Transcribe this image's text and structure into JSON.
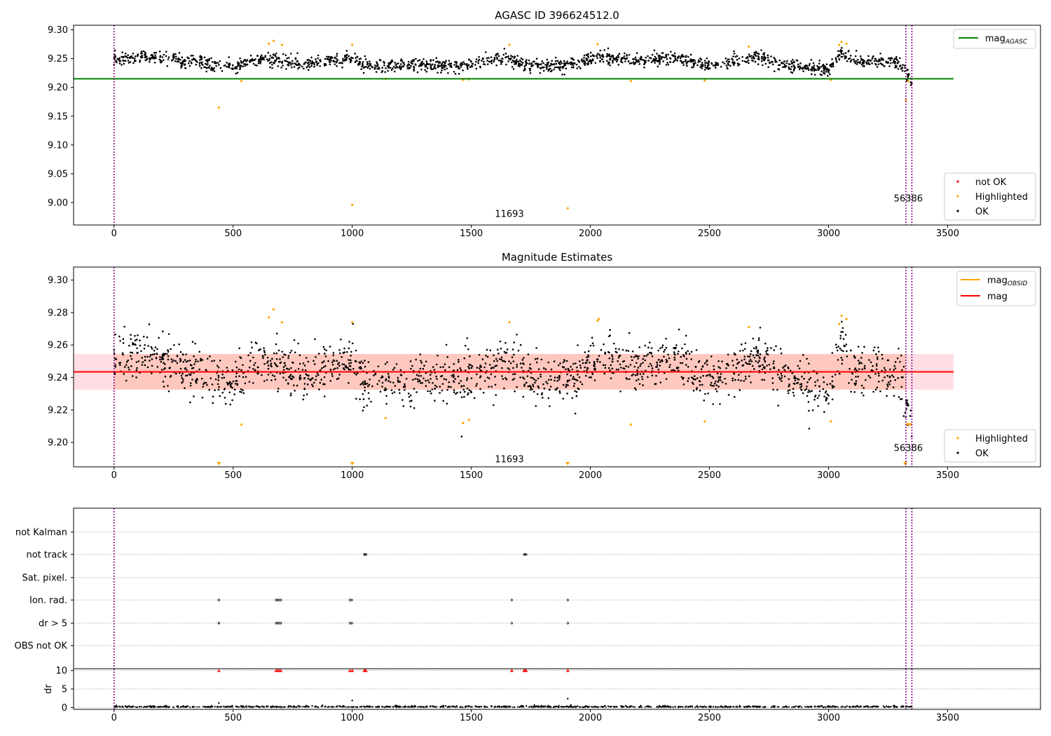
{
  "chart_data": [
    {
      "type": "scatter",
      "title": "AGASC ID 396624512.0",
      "xlim": [
        -170,
        3890
      ],
      "ylim": [
        8.961,
        9.308
      ],
      "xticks": [
        "0",
        "500",
        "1000",
        "1500",
        "2000",
        "2500",
        "3000",
        "3500"
      ],
      "yticks": [
        "9.00",
        "9.05",
        "9.10",
        "9.15",
        "9.20",
        "9.25",
        "9.30"
      ],
      "vlines_x": [
        0,
        3325,
        3350
      ],
      "reference_line": {
        "label": "mag",
        "label_sub": "AGASC",
        "value": 9.215,
        "x_range": [
          -170,
          3525
        ],
        "color": "#008000"
      },
      "obsid_labels": [
        {
          "text": "11693",
          "x": 1660,
          "y": 8.975
        },
        {
          "text": "56386",
          "x": 3335,
          "y": 9.002
        }
      ],
      "series_legend": [
        {
          "name": "not OK",
          "color": "#ff0000"
        },
        {
          "name": "Highlighted",
          "color": "#ffa500"
        },
        {
          "name": "OK",
          "color": "#000000"
        }
      ],
      "ok_trend": [
        [
          0,
          9.252
        ],
        [
          100,
          9.254
        ],
        [
          250,
          9.25
        ],
        [
          400,
          9.24
        ],
        [
          500,
          9.236
        ],
        [
          600,
          9.25
        ],
        [
          700,
          9.247
        ],
        [
          800,
          9.24
        ],
        [
          900,
          9.247
        ],
        [
          1000,
          9.252
        ],
        [
          1050,
          9.236
        ],
        [
          1300,
          9.24
        ],
        [
          1450,
          9.236
        ],
        [
          1550,
          9.246
        ],
        [
          1650,
          9.252
        ],
        [
          1750,
          9.238
        ],
        [
          1950,
          9.24
        ],
        [
          2030,
          9.254
        ],
        [
          2200,
          9.246
        ],
        [
          2350,
          9.252
        ],
        [
          2500,
          9.236
        ],
        [
          2700,
          9.252
        ],
        [
          2800,
          9.24
        ],
        [
          3000,
          9.23
        ],
        [
          3050,
          9.26
        ],
        [
          3100,
          9.246
        ],
        [
          3300,
          9.243
        ],
        [
          3325,
          9.226
        ],
        [
          3350,
          9.205
        ]
      ],
      "ok_scatter": 0.01,
      "highlighted": [
        [
          440,
          9.165
        ],
        [
          535,
          9.211
        ],
        [
          650,
          9.276
        ],
        [
          670,
          9.281
        ],
        [
          705,
          9.274
        ],
        [
          1000,
          9.274
        ],
        [
          1000,
          8.996
        ],
        [
          1140,
          9.215
        ],
        [
          1465,
          9.213
        ],
        [
          1490,
          9.214
        ],
        [
          1660,
          9.274
        ],
        [
          1905,
          8.99
        ],
        [
          2030,
          9.275
        ],
        [
          2170,
          9.211
        ],
        [
          2480,
          9.212
        ],
        [
          2665,
          9.271
        ],
        [
          3010,
          9.213
        ],
        [
          3045,
          9.274
        ],
        [
          3055,
          9.279
        ],
        [
          3075,
          9.276
        ],
        [
          3325,
          9.177
        ],
        [
          3335,
          9.211
        ]
      ]
    },
    {
      "type": "scatter",
      "title": "Magnitude Estimates",
      "xlim": [
        -170,
        3890
      ],
      "ylim": [
        9.185,
        9.308
      ],
      "xticks": [
        "0",
        "500",
        "1000",
        "1500",
        "2000",
        "2500",
        "3000",
        "3500"
      ],
      "yticks": [
        "9.20",
        "9.22",
        "9.24",
        "9.26",
        "9.28",
        "9.30"
      ],
      "vlines_x": [
        0,
        3325,
        3350
      ],
      "mag_line": {
        "label": "mag",
        "value": 9.2435,
        "x_range": [
          -170,
          3525
        ],
        "band": [
          9.2325,
          9.2545
        ],
        "color": "#ff0000"
      },
      "obsid_legend": {
        "label": "mag",
        "label_sub": "OBSID",
        "color": "#ffa500"
      },
      "obsid_labels": [
        {
          "text": "11693",
          "x": 1660,
          "y": 9.1878
        },
        {
          "text": "56386",
          "x": 3335,
          "y": 9.1948
        }
      ],
      "obsid_segments": [
        [
          0,
          3325,
          9.2435
        ],
        [
          3325,
          3350,
          9.2115
        ]
      ],
      "series_legend": [
        {
          "name": "Highlighted",
          "color": "#ffa500"
        },
        {
          "name": "OK",
          "color": "#000000"
        }
      ],
      "highlighted": [
        [
          535,
          9.211
        ],
        [
          650,
          9.277
        ],
        [
          670,
          9.282
        ],
        [
          705,
          9.274
        ],
        [
          1000,
          9.274
        ],
        [
          1140,
          9.215
        ],
        [
          1465,
          9.212
        ],
        [
          1490,
          9.214
        ],
        [
          1660,
          9.274
        ],
        [
          2030,
          9.275
        ],
        [
          2035,
          9.276
        ],
        [
          2170,
          9.211
        ],
        [
          2480,
          9.213
        ],
        [
          2665,
          9.271
        ],
        [
          3010,
          9.213
        ],
        [
          3045,
          9.273
        ],
        [
          3055,
          9.278
        ],
        [
          3075,
          9.276
        ],
        [
          3330,
          9.211
        ],
        [
          3345,
          9.211
        ]
      ],
      "clipped_markers_x": [
        440,
        1000,
        1905,
        3322
      ]
    },
    {
      "type": "scatter",
      "title": "",
      "xlim": [
        -170,
        3890
      ],
      "xticks": [
        "0",
        "500",
        "1000",
        "1500",
        "2000",
        "2500",
        "3000",
        "3500"
      ],
      "vlines_x": [
        0,
        3325,
        3350
      ],
      "flag_rows": [
        "not Kalman",
        "not track",
        "Sat. pixel.",
        "Ion. rad.",
        "dr > 5",
        "OBS not OK"
      ],
      "flags": {
        "not Kalman": [],
        "not track": [
          1050,
          1055,
          1058,
          1722,
          1726,
          1730
        ],
        "Sat. pixel.": [],
        "Ion. rad.": [
          440,
          680,
          687,
          693,
          700,
          990,
          998,
          1670,
          1905
        ],
        "dr > 5": [
          440,
          680,
          687,
          693,
          700,
          990,
          998,
          1670,
          1905
        ],
        "OBS not OK": []
      },
      "dr": {
        "ylabel": "dr",
        "yticks": [
          "0",
          "5",
          "10"
        ],
        "ylim": [
          -0.5,
          10.5
        ],
        "clipped_x": [
          440,
          680,
          687,
          693,
          700,
          990,
          1000,
          1050,
          1055,
          1058,
          1670,
          1722,
          1726,
          1730,
          1905
        ],
        "outliers": [
          [
            440,
            1.2
          ],
          [
            1000,
            1.9
          ],
          [
            1905,
            2.4
          ]
        ],
        "baseline_value": 0.3
      }
    }
  ]
}
